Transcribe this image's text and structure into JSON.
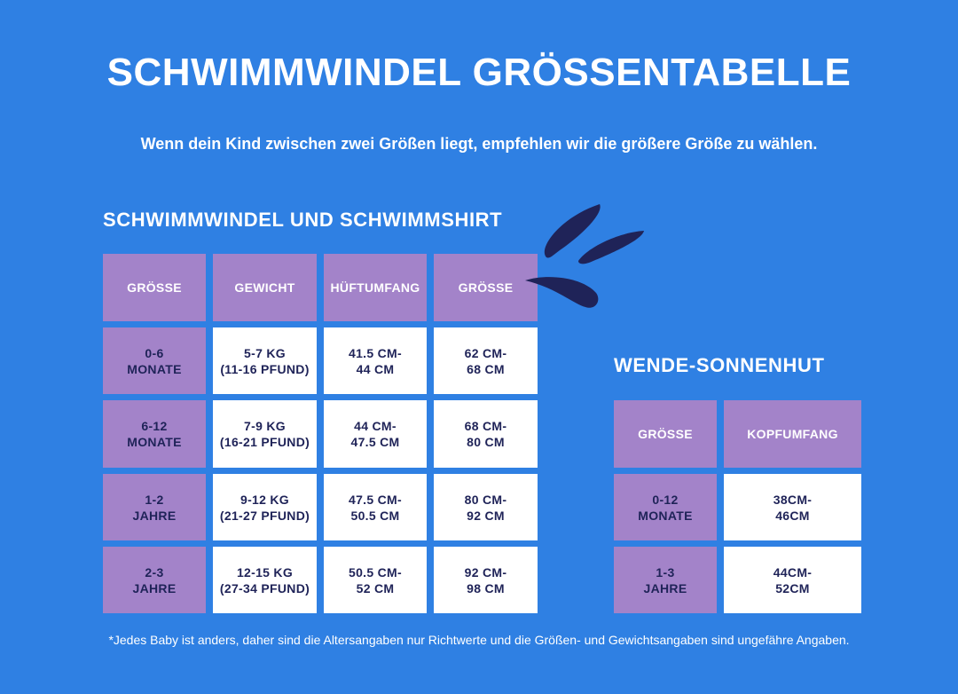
{
  "title": {
    "part1": "SCHWIMMWINDEL",
    "part2": "GRÖSSENTABELLE"
  },
  "subtitle": "Wenn dein Kind zwischen zwei Größen liegt, empfehlen wir die größere Größe zu wählen.",
  "main_table": {
    "heading": "SCHWIMMWINDEL UND SCHWIMMSHIRT",
    "headers": [
      "GRÖSSE",
      "GEWICHT",
      "HÜFTUMFANG",
      "GRÖSSE"
    ],
    "rows": [
      [
        "0-6\nMONATE",
        "5-7 KG\n(11-16 PFUND)",
        "41.5 CM-\n44 CM",
        "62 CM-\n68 CM"
      ],
      [
        "6-12\nMONATE",
        "7-9 KG\n(16-21 PFUND)",
        "44 CM-\n47.5 CM",
        "68 CM-\n80 CM"
      ],
      [
        "1-2\nJAHRE",
        "9-12 KG\n(21-27 PFUND)",
        "47.5 CM-\n50.5 CM",
        "80 CM-\n92 CM"
      ],
      [
        "2-3\nJAHRE",
        "12-15 KG\n(27-34 PFUND)",
        "50.5 CM-\n52 CM",
        "92 CM-\n98 CM"
      ]
    ]
  },
  "hat_table": {
    "heading": "WENDE-SONNENHUT",
    "headers": [
      "GRÖSSE",
      "KOPFUMFANG"
    ],
    "rows": [
      [
        "0-12\nMONATE",
        "38CM-\n46CM"
      ],
      [
        "1-3\nJAHRE",
        "44CM-\n52CM"
      ]
    ]
  },
  "footnote": "*Jedes Baby ist anders, daher sind die Altersangaben nur Richtwerte und die Größen- und Gewichtsangaben sind ungefähre Angaben.",
  "colors": {
    "background": "#2f80e3",
    "header_cell": "#a383c9",
    "value_cell": "#ffffff",
    "text_dark": "#1f2358",
    "splash": "#1f2358"
  },
  "icons": {
    "decoration": "water-splash-icon"
  }
}
